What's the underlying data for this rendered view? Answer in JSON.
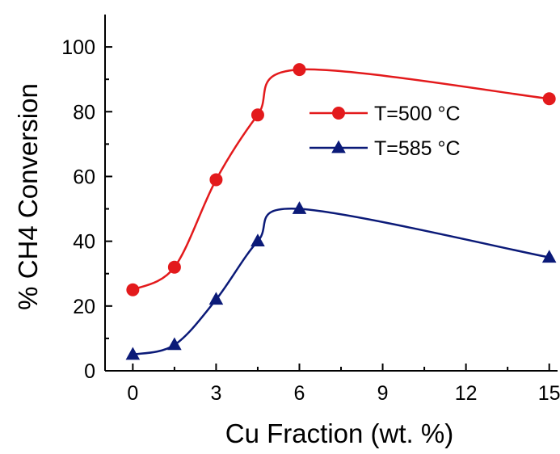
{
  "chart_data": {
    "type": "line",
    "title": "",
    "xlabel": "Cu Fraction (wt. %)",
    "ylabel": "% CH4 Conversion",
    "xlim": [
      -1,
      15.3
    ],
    "ylim": [
      0,
      110
    ],
    "xticks": [
      0,
      3,
      6,
      9,
      12,
      15
    ],
    "yticks": [
      0,
      20,
      40,
      60,
      80,
      100
    ],
    "x_tick_labels": [
      "0",
      "3",
      "6",
      "9",
      "12",
      "15"
    ],
    "y_tick_labels": [
      "0",
      "20",
      "40",
      "60",
      "80",
      "100"
    ],
    "grid": false,
    "legend_position": "center-right",
    "series": [
      {
        "name": "T=500 °C",
        "marker": "circle",
        "color": "#e31a1c",
        "x": [
          0,
          1.5,
          3,
          4.5,
          6,
          15
        ],
        "y": [
          25,
          32,
          59,
          79,
          93,
          84
        ]
      },
      {
        "name": "T=585 °C",
        "marker": "triangle",
        "color": "#0b1a78",
        "x": [
          0,
          1.5,
          3,
          4.5,
          6,
          15
        ],
        "y": [
          5,
          8,
          22,
          40,
          50,
          35
        ]
      }
    ]
  }
}
